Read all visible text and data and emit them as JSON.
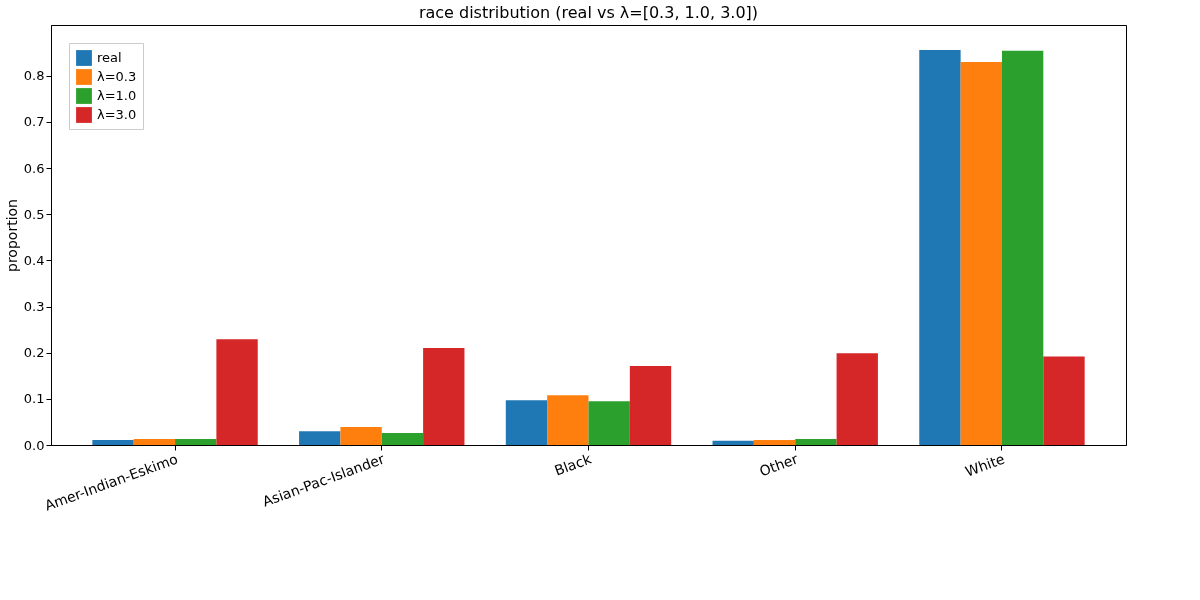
{
  "chart_data": {
    "type": "bar",
    "title": "race distribution (real vs λ=[0.3, 1.0, 3.0])",
    "ylabel": "proportion",
    "categories": [
      "Amer-Indian-Eskimo",
      "Asian-Pac-Islander",
      "Black",
      "Other",
      "White"
    ],
    "series": [
      {
        "name": "real",
        "color": "#1f77b4",
        "values": [
          0.011,
          0.03,
          0.097,
          0.009,
          0.856
        ]
      },
      {
        "name": "λ=0.3",
        "color": "#ff7f0e",
        "values": [
          0.013,
          0.039,
          0.108,
          0.011,
          0.83
        ]
      },
      {
        "name": "λ=1.0",
        "color": "#2ca02c",
        "values": [
          0.013,
          0.026,
          0.095,
          0.013,
          0.854
        ]
      },
      {
        "name": "λ=3.0",
        "color": "#d62728",
        "values": [
          0.229,
          0.21,
          0.171,
          0.199,
          0.192
        ]
      }
    ],
    "ylim": [
      0,
      0.91
    ],
    "yticks": [
      {
        "value": 0,
        "label": "0.0"
      },
      0.1,
      0.2,
      0.3,
      0.4,
      0.5,
      0.6,
      0.7,
      0.8
    ],
    "grid": false,
    "legend": "top left"
  }
}
